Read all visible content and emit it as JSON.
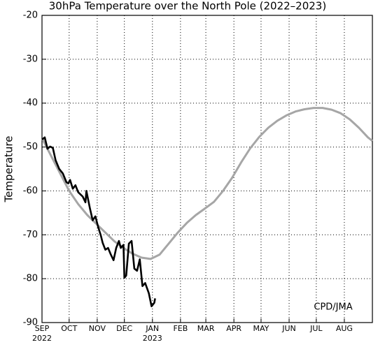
{
  "chart_data": {
    "type": "line",
    "title": "30hPa Temperature over the North Pole (2022–2023)",
    "y_label": "Temperature",
    "annotation": "CPD/JMA",
    "xlim": [
      0,
      365
    ],
    "ylim": [
      -90,
      -20
    ],
    "yticks": [
      -90,
      -80,
      -70,
      -60,
      -50,
      -40,
      -30,
      -20
    ],
    "xticks": [
      {
        "value": 0,
        "label": "SEP"
      },
      {
        "value": 30,
        "label": "OCT"
      },
      {
        "value": 61,
        "label": "NOV"
      },
      {
        "value": 91,
        "label": "DEC"
      },
      {
        "value": 122,
        "label": "JAN"
      },
      {
        "value": 153,
        "label": "FEB"
      },
      {
        "value": 181,
        "label": "MAR"
      },
      {
        "value": 212,
        "label": "APR"
      },
      {
        "value": 242,
        "label": "MAY"
      },
      {
        "value": 273,
        "label": "JUN"
      },
      {
        "value": 303,
        "label": "JUL"
      },
      {
        "value": 334,
        "label": "AUG"
      }
    ],
    "year_labels": [
      {
        "value": 0,
        "label": "2022"
      },
      {
        "value": 122,
        "label": "2023"
      }
    ],
    "grid": true,
    "series": [
      {
        "color": "#a6a6a6",
        "x": [
          0,
          10,
          20,
          30,
          40,
          50,
          60,
          70,
          80,
          90,
          100,
          110,
          120,
          130,
          140,
          150,
          160,
          170,
          180,
          190,
          200,
          210,
          220,
          230,
          240,
          250,
          260,
          270,
          280,
          290,
          300,
          310,
          320,
          330,
          340,
          350,
          360,
          365
        ],
        "values": [
          -48,
          -52,
          -56,
          -60,
          -63,
          -65.5,
          -67.5,
          -69.5,
          -71.5,
          -73,
          -74.3,
          -75.2,
          -75.5,
          -74.5,
          -72,
          -69.5,
          -67.3,
          -65.5,
          -64,
          -62.5,
          -60,
          -57,
          -53.5,
          -50.3,
          -47.7,
          -45.6,
          -44,
          -42.8,
          -41.9,
          -41.4,
          -41.1,
          -41.1,
          -41.5,
          -42.3,
          -43.7,
          -45.6,
          -47.8,
          -48.6
        ]
      },
      {
        "color": "#000000",
        "x": [
          0,
          3,
          6,
          9,
          12,
          15,
          19,
          23,
          27,
          29,
          31,
          34,
          37,
          40,
          45,
          48,
          49,
          53,
          56,
          59,
          62,
          65,
          67,
          70,
          73,
          76,
          79,
          82,
          85,
          87,
          90,
          91,
          93,
          96,
          99,
          102,
          105,
          108,
          111,
          114,
          118,
          121,
          124,
          125
        ],
        "values": [
          -48.3,
          -47.8,
          -50.4,
          -49.9,
          -50.2,
          -53,
          -55,
          -56,
          -58,
          -58.3,
          -57.5,
          -59.5,
          -58.7,
          -60.3,
          -61.3,
          -62.6,
          -60,
          -64,
          -66.7,
          -65.8,
          -68.2,
          -70.2,
          -71.8,
          -73.4,
          -73,
          -74.5,
          -75.8,
          -73,
          -71.4,
          -73,
          -72.3,
          -79.8,
          -79.3,
          -72,
          -71.4,
          -77.7,
          -78.2,
          -75.6,
          -81.7,
          -81,
          -83.3,
          -86.3,
          -85.5,
          -84.5
        ]
      }
    ]
  }
}
